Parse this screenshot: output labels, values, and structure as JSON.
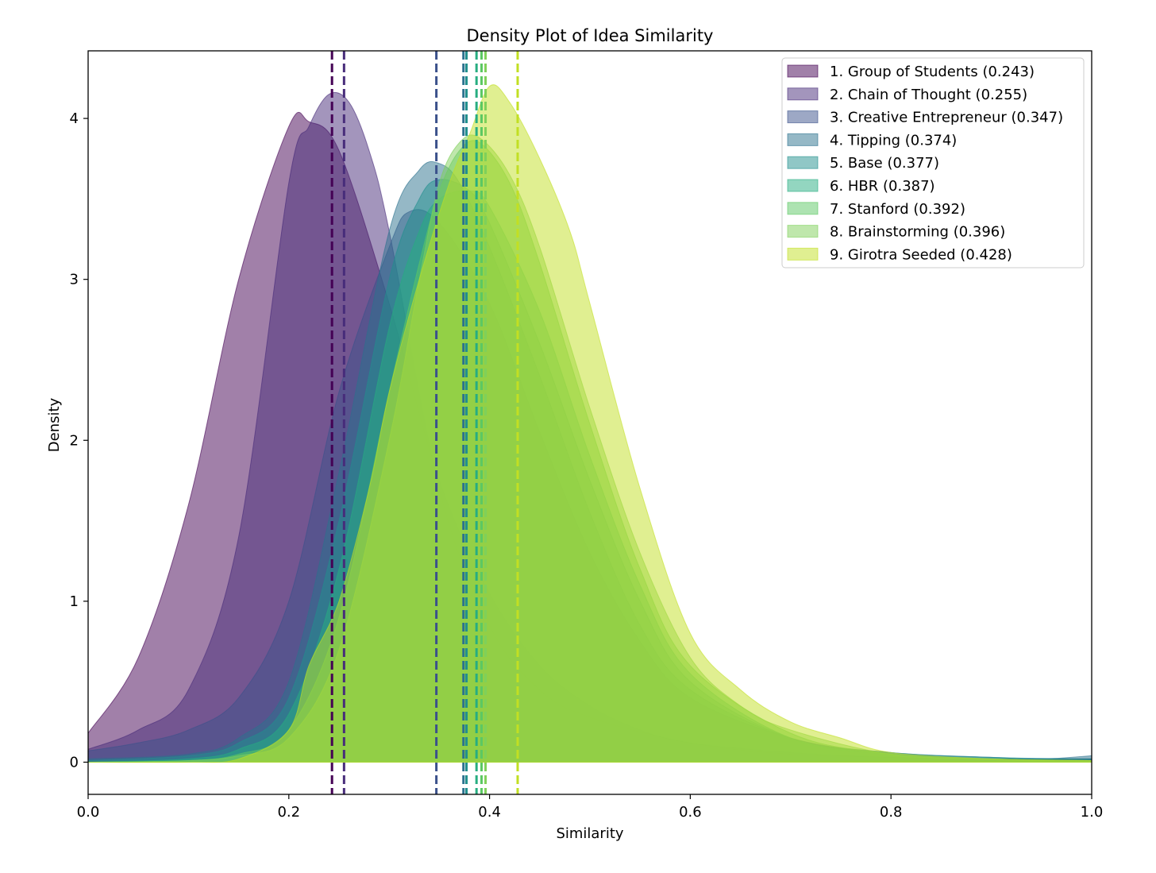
{
  "chart_data": {
    "type": "area",
    "title": "Density Plot of Idea Similarity",
    "xlabel": "Similarity",
    "ylabel": "Density",
    "xlim": [
      0.0,
      1.0
    ],
    "ylim": [
      -0.2,
      4.42
    ],
    "x_ticks": [
      0.0,
      0.2,
      0.4,
      0.6,
      0.8,
      1.0
    ],
    "x_tick_labels": [
      "0.0",
      "0.2",
      "0.4",
      "0.6",
      "0.8",
      "1.0"
    ],
    "y_ticks": [
      0,
      1,
      2,
      3,
      4
    ],
    "y_tick_labels": [
      "0",
      "1",
      "2",
      "3",
      "4"
    ],
    "legend_position": "top-right",
    "series": [
      {
        "name": "1. Group of Students (0.243)",
        "mean": 0.243,
        "color": "#440154",
        "x": [
          0.0,
          0.05,
          0.1,
          0.15,
          0.2,
          0.22,
          0.25,
          0.3,
          0.35,
          0.4,
          0.45,
          0.5,
          0.55,
          0.6,
          0.7,
          0.8,
          0.9,
          1.0
        ],
        "y": [
          0.18,
          0.65,
          1.6,
          3.0,
          3.95,
          3.98,
          3.8,
          2.85,
          1.75,
          1.05,
          0.6,
          0.35,
          0.2,
          0.12,
          0.06,
          0.03,
          0.02,
          0.02
        ]
      },
      {
        "name": "2. Chain of Thought (0.255)",
        "mean": 0.255,
        "color": "#472c7a",
        "x": [
          0.0,
          0.05,
          0.1,
          0.15,
          0.2,
          0.22,
          0.24,
          0.26,
          0.28,
          0.3,
          0.35,
          0.4,
          0.45,
          0.5,
          0.6,
          0.7,
          0.8,
          0.9,
          1.0
        ],
        "y": [
          0.08,
          0.2,
          0.45,
          1.4,
          3.6,
          3.95,
          4.15,
          4.1,
          3.8,
          3.3,
          1.7,
          0.85,
          0.45,
          0.28,
          0.12,
          0.05,
          0.03,
          0.02,
          0.02
        ]
      },
      {
        "name": "3. Creative Entrepreneur (0.347)",
        "mean": 0.347,
        "color": "#3b518b",
        "x": [
          0.0,
          0.05,
          0.1,
          0.15,
          0.2,
          0.25,
          0.3,
          0.32,
          0.35,
          0.4,
          0.45,
          0.5,
          0.55,
          0.6,
          0.7,
          0.8,
          0.9,
          1.0
        ],
        "y": [
          0.07,
          0.12,
          0.2,
          0.4,
          1.0,
          2.3,
          3.2,
          3.42,
          3.35,
          2.85,
          2.05,
          1.3,
          0.75,
          0.4,
          0.15,
          0.05,
          0.02,
          0.02
        ]
      },
      {
        "name": "4. Tipping (0.374)",
        "mean": 0.374,
        "color": "#2c718e",
        "x": [
          0.0,
          0.1,
          0.15,
          0.2,
          0.25,
          0.3,
          0.33,
          0.35,
          0.37,
          0.4,
          0.45,
          0.5,
          0.55,
          0.6,
          0.7,
          0.8,
          0.9,
          0.95,
          1.0
        ],
        "y": [
          0.02,
          0.05,
          0.15,
          0.5,
          1.8,
          3.3,
          3.68,
          3.72,
          3.6,
          3.2,
          2.4,
          1.55,
          0.85,
          0.45,
          0.15,
          0.06,
          0.03,
          0.02,
          0.04
        ]
      },
      {
        "name": "5. Base (0.377)",
        "mean": 0.377,
        "color": "#21908d",
        "x": [
          0.0,
          0.1,
          0.15,
          0.2,
          0.25,
          0.3,
          0.33,
          0.35,
          0.38,
          0.4,
          0.45,
          0.5,
          0.55,
          0.6,
          0.7,
          0.8,
          0.9,
          1.0
        ],
        "y": [
          0.01,
          0.04,
          0.12,
          0.4,
          1.5,
          3.0,
          3.5,
          3.62,
          3.55,
          3.35,
          2.6,
          1.75,
          1.0,
          0.5,
          0.15,
          0.06,
          0.03,
          0.02
        ]
      },
      {
        "name": "6. HBR (0.387)",
        "mean": 0.387,
        "color": "#27ad81",
        "x": [
          0.0,
          0.1,
          0.15,
          0.2,
          0.25,
          0.3,
          0.33,
          0.35,
          0.38,
          0.4,
          0.45,
          0.5,
          0.55,
          0.6,
          0.7,
          0.8,
          0.9,
          1.0
        ],
        "y": [
          0.0,
          0.02,
          0.08,
          0.3,
          1.2,
          2.7,
          3.3,
          3.5,
          3.55,
          3.45,
          2.8,
          1.9,
          1.1,
          0.55,
          0.15,
          0.05,
          0.02,
          0.01
        ]
      },
      {
        "name": "7. Stanford (0.392)",
        "mean": 0.392,
        "color": "#5cc863",
        "x": [
          0.0,
          0.1,
          0.15,
          0.2,
          0.25,
          0.3,
          0.33,
          0.35,
          0.37,
          0.39,
          0.42,
          0.45,
          0.5,
          0.55,
          0.6,
          0.7,
          0.8,
          0.9,
          1.0
        ],
        "y": [
          0.0,
          0.01,
          0.05,
          0.2,
          0.9,
          2.3,
          3.1,
          3.55,
          3.8,
          3.85,
          3.6,
          3.1,
          2.1,
          1.2,
          0.6,
          0.18,
          0.05,
          0.02,
          0.01
        ]
      },
      {
        "name": "8. Brainstorming (0.396)",
        "mean": 0.396,
        "color": "#7fd05a",
        "x": [
          0.0,
          0.1,
          0.15,
          0.2,
          0.25,
          0.3,
          0.33,
          0.35,
          0.37,
          0.39,
          0.42,
          0.45,
          0.5,
          0.55,
          0.6,
          0.65,
          0.7,
          0.8,
          0.9,
          1.0
        ],
        "y": [
          0.0,
          0.01,
          0.04,
          0.15,
          0.7,
          2.0,
          3.0,
          3.6,
          3.85,
          3.88,
          3.65,
          3.2,
          2.2,
          1.3,
          0.65,
          0.35,
          0.2,
          0.05,
          0.02,
          0.01
        ]
      },
      {
        "name": "9. Girotra Seeded (0.428)",
        "mean": 0.428,
        "color": "#c2df23",
        "x": [
          0.0,
          0.1,
          0.15,
          0.2,
          0.22,
          0.25,
          0.28,
          0.3,
          0.33,
          0.36,
          0.38,
          0.4,
          0.42,
          0.45,
          0.48,
          0.5,
          0.55,
          0.6,
          0.65,
          0.7,
          0.75,
          0.8,
          0.9,
          1.0
        ],
        "y": [
          0.0,
          0.0,
          0.02,
          0.2,
          0.6,
          1.0,
          1.7,
          2.3,
          3.0,
          3.6,
          3.9,
          4.2,
          4.1,
          3.75,
          3.3,
          2.85,
          1.7,
          0.8,
          0.45,
          0.25,
          0.15,
          0.06,
          0.02,
          0.01
        ]
      }
    ]
  }
}
